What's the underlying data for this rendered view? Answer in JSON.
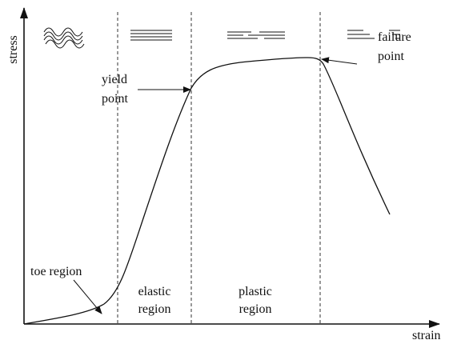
{
  "axes": {
    "x_label": "strain",
    "y_label": "stress"
  },
  "regions": [
    {
      "lines": [
        "toe region"
      ]
    },
    {
      "lines": [
        "elastic",
        "region"
      ]
    },
    {
      "lines": [
        "plastic",
        "region"
      ]
    }
  ],
  "annotations": [
    {
      "lines": [
        "yield",
        "point"
      ]
    },
    {
      "lines": [
        "failure",
        "point"
      ]
    }
  ]
}
